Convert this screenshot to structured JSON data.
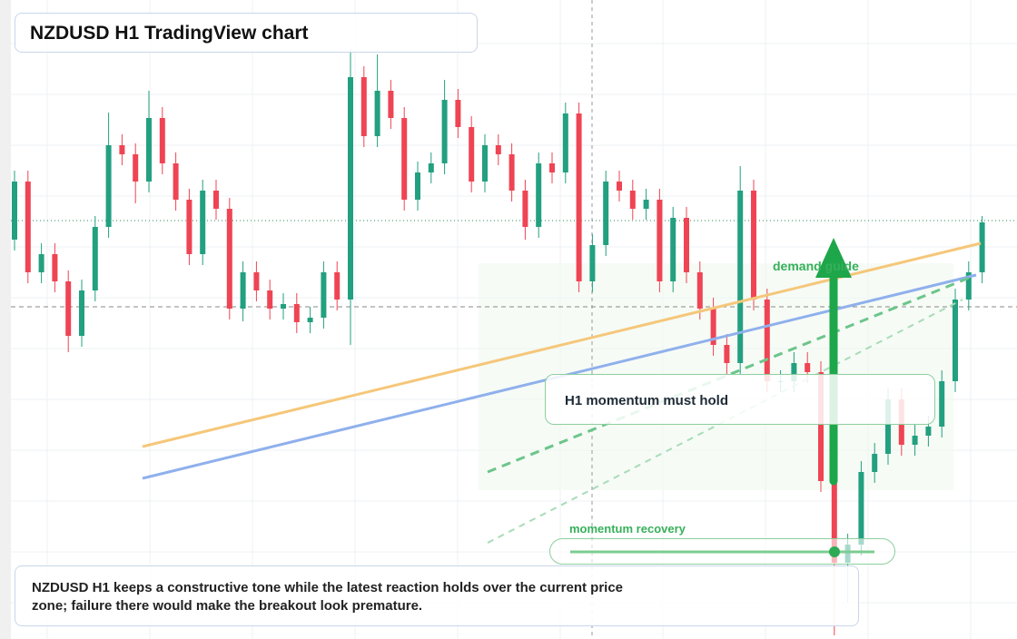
{
  "chart_data": {
    "type": "candlestick",
    "title": "NZDUSD H1 TradingView chart",
    "annotations": {
      "hold": "H1 momentum must hold",
      "demand": "demand guide",
      "recovery": "momentum recovery",
      "note": "NZDUSD H1 keeps a constructive tone while the latest reaction holds over the current price zone; failure there would make the breakout look premature."
    },
    "up_color": "#22a07f",
    "down_color": "#ef4453",
    "ylim": [
      0,
      704
    ],
    "candles": [
      [
        440,
        516,
        428,
        504
      ],
      [
        504,
        516,
        392,
        404
      ],
      [
        404,
        436,
        392,
        424
      ],
      [
        424,
        436,
        382,
        394
      ],
      [
        394,
        406,
        316,
        334
      ],
      [
        334,
        396,
        322,
        384
      ],
      [
        384,
        466,
        372,
        454
      ],
      [
        454,
        580,
        442,
        544
      ],
      [
        544,
        556,
        522,
        534
      ],
      [
        534,
        546,
        480,
        504
      ],
      [
        504,
        604,
        492,
        574
      ],
      [
        574,
        586,
        512,
        524
      ],
      [
        524,
        536,
        472,
        484
      ],
      [
        484,
        496,
        412,
        424
      ],
      [
        424,
        506,
        412,
        494
      ],
      [
        494,
        506,
        462,
        474
      ],
      [
        474,
        486,
        352,
        364
      ],
      [
        364,
        416,
        350,
        404
      ],
      [
        404,
        416,
        372,
        384
      ],
      [
        384,
        396,
        352,
        364
      ],
      [
        364,
        381,
        352,
        369
      ],
      [
        369,
        381,
        337,
        349
      ],
      [
        349,
        366,
        337,
        354
      ],
      [
        354,
        416,
        342,
        404
      ],
      [
        404,
        416,
        362,
        374
      ],
      [
        374,
        650,
        324,
        619
      ],
      [
        619,
        631,
        542,
        554
      ],
      [
        554,
        644,
        542,
        604
      ],
      [
        604,
        616,
        562,
        574
      ],
      [
        574,
        586,
        472,
        484
      ],
      [
        484,
        526,
        472,
        514
      ],
      [
        514,
        536,
        502,
        524
      ],
      [
        524,
        616,
        512,
        594
      ],
      [
        594,
        606,
        552,
        564
      ],
      [
        564,
        576,
        492,
        504
      ],
      [
        504,
        556,
        492,
        544
      ],
      [
        544,
        556,
        522,
        534
      ],
      [
        534,
        546,
        482,
        494
      ],
      [
        494,
        506,
        440,
        454
      ],
      [
        454,
        536,
        442,
        524
      ],
      [
        524,
        536,
        502,
        514
      ],
      [
        514,
        591,
        502,
        579
      ],
      [
        579,
        591,
        382,
        394
      ],
      [
        394,
        446,
        382,
        434
      ],
      [
        434,
        516,
        422,
        504
      ],
      [
        504,
        516,
        482,
        494
      ],
      [
        494,
        506,
        462,
        474
      ],
      [
        474,
        496,
        462,
        484
      ],
      [
        484,
        496,
        382,
        394
      ],
      [
        394,
        476,
        382,
        464
      ],
      [
        464,
        476,
        392,
        404
      ],
      [
        404,
        416,
        352,
        364
      ],
      [
        364,
        376,
        312,
        324
      ],
      [
        324,
        336,
        292,
        304
      ],
      [
        304,
        521,
        292,
        494
      ],
      [
        494,
        506,
        362,
        374
      ],
      [
        374,
        386,
        272,
        284
      ],
      [
        284,
        296,
        272,
        284
      ],
      [
        284,
        316,
        272,
        304
      ],
      [
        304,
        316,
        282,
        294
      ],
      [
        294,
        306,
        162,
        174
      ],
      [
        174,
        186,
        4,
        84
      ],
      [
        84,
        116,
        40,
        104
      ],
      [
        104,
        196,
        92,
        184
      ],
      [
        184,
        216,
        172,
        204
      ],
      [
        204,
        276,
        192,
        264
      ],
      [
        264,
        276,
        202,
        214
      ],
      [
        214,
        236,
        202,
        224
      ],
      [
        224,
        246,
        212,
        234
      ],
      [
        234,
        296,
        222,
        284
      ],
      [
        284,
        386,
        272,
        374
      ],
      [
        374,
        416,
        362,
        404
      ],
      [
        404,
        466,
        392,
        459
      ]
    ]
  }
}
